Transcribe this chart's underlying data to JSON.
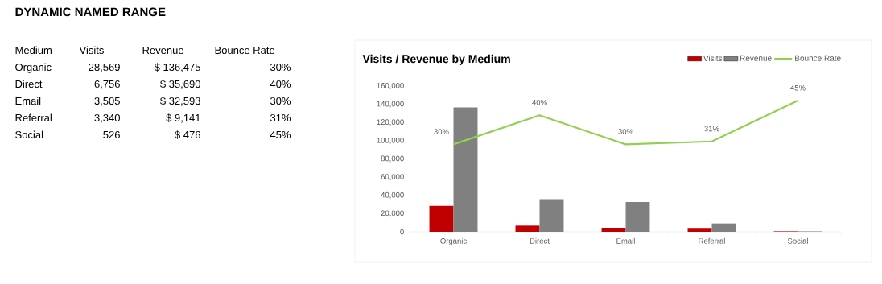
{
  "chart_data": [
    {
      "type": "other",
      "title": "DYNAMIC NAMED RANGE",
      "annotations": [
        "Medium",
        "Visits",
        "Revenue",
        "Bounce Rate",
        "Organic",
        "28,569",
        "$ 136,475",
        "30%",
        "Direct",
        "6,756",
        "$ 35,690",
        "40%",
        "Email",
        "3,505",
        "$ 32,593",
        "30%",
        "Referral",
        "3,340",
        "$ 9,141",
        "31%",
        "Social",
        "526",
        "$ 476",
        "45%"
      ]
    },
    {
      "type": "bar",
      "title": "Visits / Revenue by Medium",
      "categories": [
        "Organic",
        "Direct",
        "Email",
        "Referral",
        "Social"
      ],
      "series": [
        {
          "name": "Visits",
          "color": "#c00000",
          "values": [
            28569,
            6756,
            3505,
            3340,
            526
          ]
        },
        {
          "name": "Revenue",
          "color": "#808080",
          "values": [
            136475,
            35690,
            32593,
            9141,
            476
          ]
        },
        {
          "name": "Bounce Rate",
          "type": "line",
          "axis": "y2",
          "color": "#92d050",
          "values": [
            30,
            40,
            30,
            31,
            45
          ],
          "value_labels": [
            "30%",
            "40%",
            "30%",
            "31%",
            "45%"
          ]
        }
      ],
      "ylim": [
        0,
        160000
      ],
      "yticks": [
        {
          "value": 0,
          "label": "0"
        },
        {
          "value": 20000,
          "label": "20,000"
        },
        {
          "value": 40000,
          "label": "40,000"
        },
        {
          "value": 60000,
          "label": "60,000"
        },
        {
          "value": 80000,
          "label": "80,000"
        },
        {
          "value": 100000,
          "label": "100,000"
        },
        {
          "value": 120000,
          "label": "120,000"
        },
        {
          "value": 140000,
          "label": "140,000"
        },
        {
          "value": 160000,
          "label": "160,000"
        }
      ],
      "legend": "top right"
    }
  ]
}
